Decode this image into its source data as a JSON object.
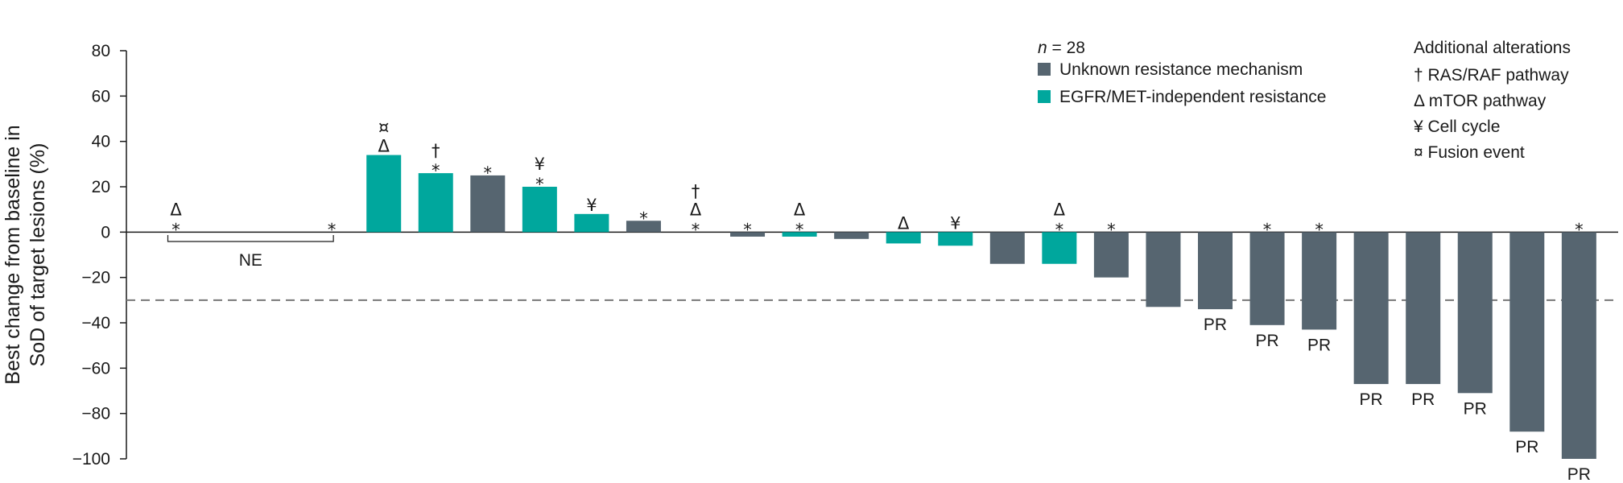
{
  "colors": {
    "unknown": "#566570",
    "independent": "#00a79d",
    "axis": "#1a1a1a",
    "threshold": "#777777"
  },
  "chart_data": {
    "type": "bar",
    "ylabel_lines": [
      "Best change from baseline in",
      "SoD of target lesions (%)"
    ],
    "ylim": [
      -100,
      80
    ],
    "yticks": [
      80,
      60,
      40,
      20,
      0,
      -20,
      -40,
      -60,
      -80,
      -100
    ],
    "threshold": -30,
    "legend": {
      "n_label": "n",
      "n_text": " = 28",
      "series": [
        {
          "key": "unknown",
          "label": "Unknown resistance mechanism"
        },
        {
          "key": "independent",
          "label": "EGFR/MET-independent resistance"
        }
      ],
      "alterations_title": "Additional alterations",
      "alterations": [
        "† RAS/RAF pathway",
        "Δ mTOR pathway",
        "¥ Cell cycle",
        "¤ Fusion event"
      ]
    },
    "ne_label": "NE",
    "bars": [
      {
        "value": null,
        "series": null,
        "marks": [
          "Δ",
          "*"
        ],
        "label": ""
      },
      {
        "value": null,
        "series": null,
        "marks": [],
        "label": ""
      },
      {
        "value": null,
        "series": null,
        "marks": [],
        "label": ""
      },
      {
        "value": null,
        "series": null,
        "marks": [
          "*"
        ],
        "label": ""
      },
      {
        "value": 34,
        "series": "independent",
        "marks": [
          "¤",
          "Δ"
        ],
        "label": ""
      },
      {
        "value": 26,
        "series": "independent",
        "marks": [
          "†",
          "*"
        ],
        "label": ""
      },
      {
        "value": 25,
        "series": "unknown",
        "marks": [
          "*"
        ],
        "label": ""
      },
      {
        "value": 20,
        "series": "independent",
        "marks": [
          "¥",
          "*"
        ],
        "label": ""
      },
      {
        "value": 8,
        "series": "independent",
        "marks": [
          "¥"
        ],
        "label": ""
      },
      {
        "value": 5,
        "series": "unknown",
        "marks": [
          "*"
        ],
        "label": ""
      },
      {
        "value": null,
        "series": null,
        "marks": [
          "†",
          "Δ",
          "*"
        ],
        "label": ""
      },
      {
        "value": -2,
        "series": "unknown",
        "marks": [
          "*"
        ],
        "label": ""
      },
      {
        "value": -2,
        "series": "independent",
        "marks": [
          "Δ",
          "*"
        ],
        "label": ""
      },
      {
        "value": -3,
        "series": "unknown",
        "marks": [],
        "label": ""
      },
      {
        "value": -5,
        "series": "independent",
        "marks": [
          "Δ"
        ],
        "label": ""
      },
      {
        "value": -6,
        "series": "independent",
        "marks": [
          "¥"
        ],
        "label": ""
      },
      {
        "value": -14,
        "series": "unknown",
        "marks": [],
        "label": ""
      },
      {
        "value": -14,
        "series": "independent",
        "marks": [
          "Δ",
          "*"
        ],
        "label": ""
      },
      {
        "value": -20,
        "series": "unknown",
        "marks": [
          "*"
        ],
        "label": ""
      },
      {
        "value": -33,
        "series": "unknown",
        "marks": [],
        "label": ""
      },
      {
        "value": -34,
        "series": "unknown",
        "marks": [],
        "label": "PR"
      },
      {
        "value": -41,
        "series": "unknown",
        "marks": [
          "*"
        ],
        "label": "PR"
      },
      {
        "value": -43,
        "series": "unknown",
        "marks": [
          "*"
        ],
        "label": "PR"
      },
      {
        "value": -67,
        "series": "unknown",
        "marks": [],
        "label": "PR"
      },
      {
        "value": -67,
        "series": "unknown",
        "marks": [],
        "label": "PR"
      },
      {
        "value": -71,
        "series": "unknown",
        "marks": [],
        "label": "PR"
      },
      {
        "value": -88,
        "series": "unknown",
        "marks": [],
        "label": "PR"
      },
      {
        "value": -100,
        "series": "unknown",
        "marks": [
          "*"
        ],
        "label": "PR"
      }
    ]
  }
}
